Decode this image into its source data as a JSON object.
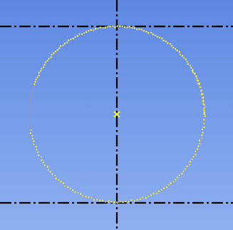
{
  "canvas": {
    "type": "cad-sketch",
    "background_top": "#5e88e2",
    "background_bottom": "#8fb0f0",
    "centerline_color": "#000000",
    "circle_stroke_color": "#8f99c0",
    "highlight_color": "#f0f04a",
    "center_marker_color": "#f0f04a"
  },
  "geometry": {
    "entities": [
      {
        "name": "horizontal-centerline-top"
      },
      {
        "name": "horizontal-centerline-bottom"
      },
      {
        "name": "vertical-centerline"
      },
      {
        "name": "circle"
      },
      {
        "name": "circle-center-point"
      }
    ]
  }
}
